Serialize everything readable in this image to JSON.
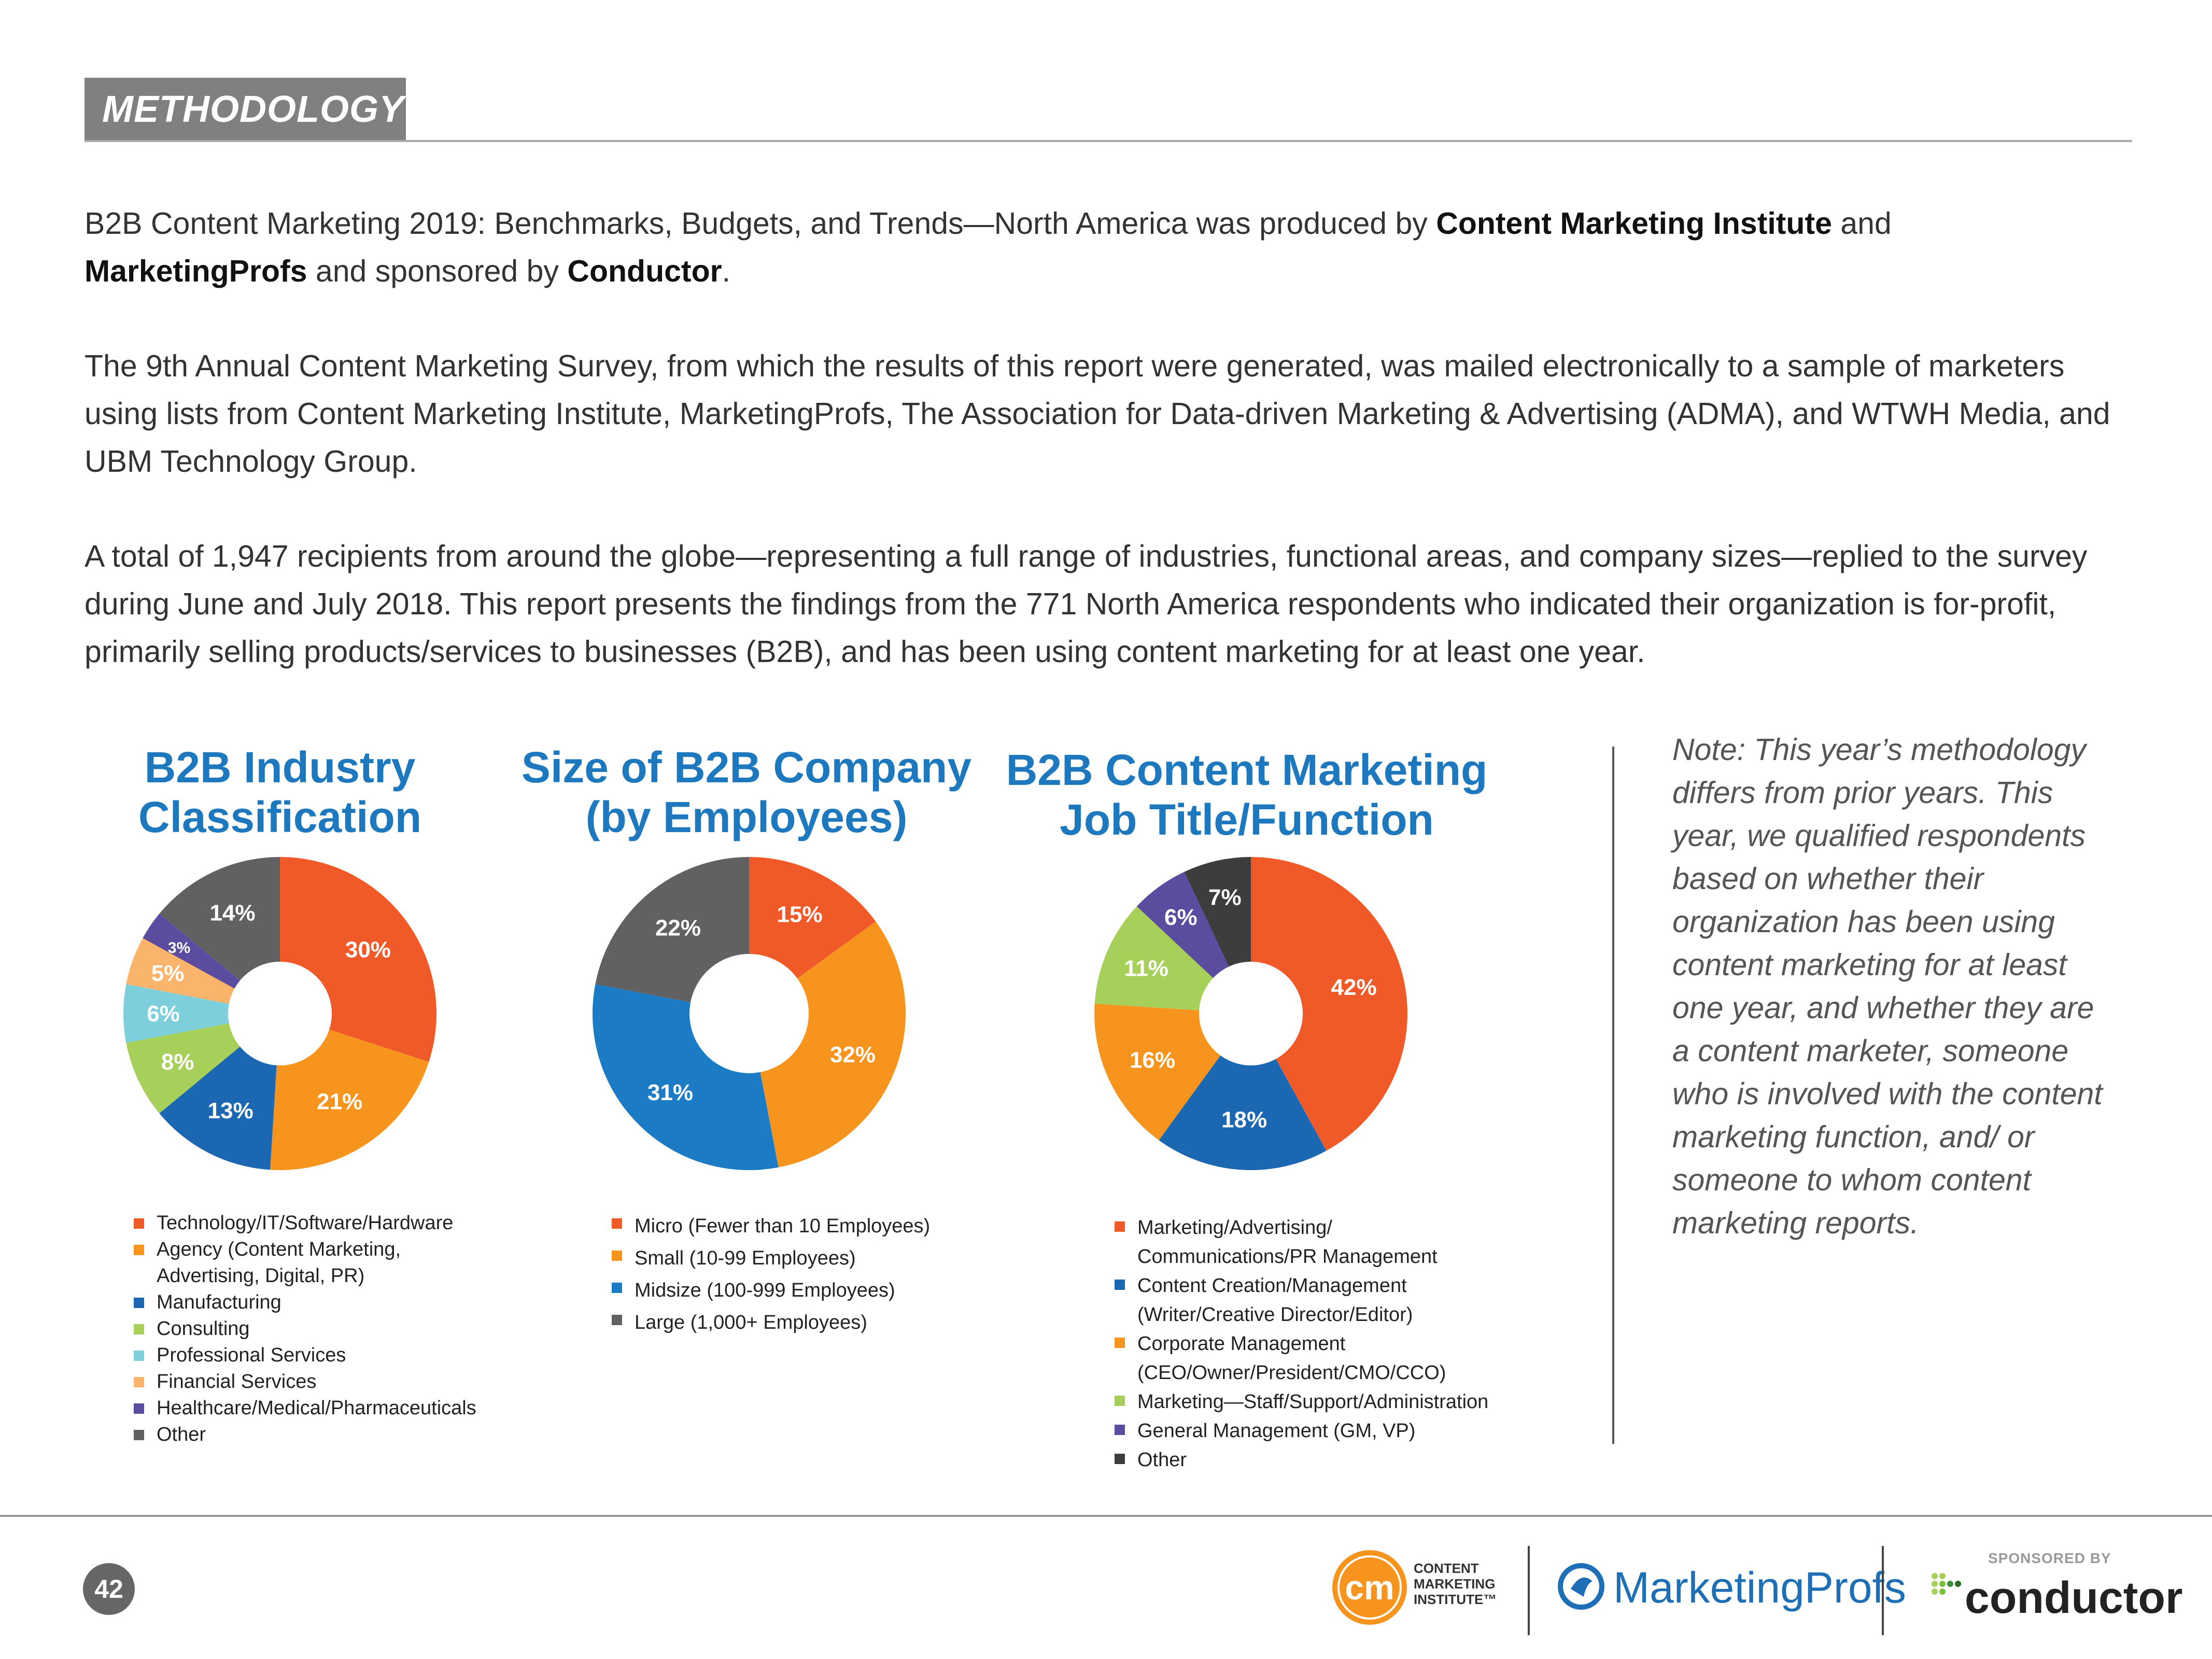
{
  "header": {
    "section_label": "METHODOLOGY"
  },
  "intro": {
    "p1_a": "B2B Content Marketing 2019: Benchmarks, Budgets, and Trends—North America was produced by ",
    "p1_cmi": "Content Marketing Institute",
    "p1_b": " and ",
    "p1_mp": "MarketingProfs",
    "p1_c": " and sponsored by ",
    "p1_cond": "Conductor",
    "p1_d": ".",
    "p2": "The 9th Annual Content Marketing Survey, from which the results of this report were generated, was mailed electronically to a sample of marketers using lists from Content Marketing Institute, MarketingProfs, The Association for Data-driven Marketing & Advertising (ADMA), and WTWH Media, and UBM Technology Group.",
    "p3": "A total of 1,947 recipients from around the globe—representing a full range of industries, functional areas, and company sizes—replied to the survey during June and July 2018. This report presents the findings from the 771 North America respondents who indicated their organization is for-profit, primarily selling products/services to businesses (B2B), and has been using content marketing for at least one year."
  },
  "chart_data": [
    {
      "type": "pie",
      "title": "B2B Industry Classification",
      "categories": [
        "Technology/IT/Software/Hardware",
        "Agency (Content Marketing,\nAdvertising, Digital, PR)",
        "Manufacturing",
        "Consulting",
        "Professional Services",
        "Financial Services",
        "Healthcare/Medical/Pharmaceuticals",
        "Other"
      ],
      "values": [
        30,
        21,
        13,
        8,
        6,
        5,
        3,
        14
      ],
      "labels": [
        "30%",
        "21%",
        "13%",
        "8%",
        "6%",
        "5%",
        "3%",
        "14%"
      ],
      "colors": [
        "#f05a28",
        "#f7941d",
        "#1b67b2",
        "#a7d05a",
        "#7dcfdb",
        "#fbb46b",
        "#5c4c9f",
        "#616161"
      ],
      "donut": true
    },
    {
      "type": "pie",
      "title": "Size of B2B Company (by Employees)",
      "categories": [
        "Micro (Fewer than 10 Employees)",
        "Small (10-99 Employees)",
        "Midsize (100-999 Employees)",
        "Large (1,000+ Employees)"
      ],
      "values": [
        15,
        32,
        31,
        22
      ],
      "labels": [
        "15%",
        "32%",
        "31%",
        "22%"
      ],
      "colors": [
        "#f05a28",
        "#f7941d",
        "#1b7bc4",
        "#616161"
      ],
      "donut": true
    },
    {
      "type": "pie",
      "title": "B2B Content Marketing Job Title/Function",
      "categories": [
        "Marketing/Advertising/\nCommunications/PR Management",
        "Content Creation/Management\n(Writer/Creative Director/Editor)",
        "Corporate Management\n(CEO/Owner/President/CMO/CCO)",
        "Marketing—Staff/Support/Administration",
        "General Management (GM, VP)",
        "Other"
      ],
      "values": [
        42,
        18,
        16,
        11,
        6,
        7
      ],
      "labels": [
        "42%",
        "18%",
        "16%",
        "11%",
        "6%",
        "7%"
      ],
      "colors": [
        "#f05a28",
        "#1b67b2",
        "#f7941d",
        "#a7d05a",
        "#5c4c9f",
        "#3d3d3d"
      ],
      "donut": true
    }
  ],
  "note": "Note: This year’s methodology differs from prior years. This year, we qualified respondents based on whether their organization has been using content marketing for at least one year, and whether they are a content marketer, someone who is involved with the content marketing function, and/ or someone to whom content marketing reports.",
  "footer": {
    "page_number": "42",
    "cmi_logo_mark": "cm",
    "cmi_logo_text": "CONTENT\nMARKETING\nINSTITUTE™",
    "marketingprofs_logo_text": "MarketingProfs",
    "sponsored_label": "SPONSORED BY",
    "conductor_logo_text": "conductor"
  }
}
